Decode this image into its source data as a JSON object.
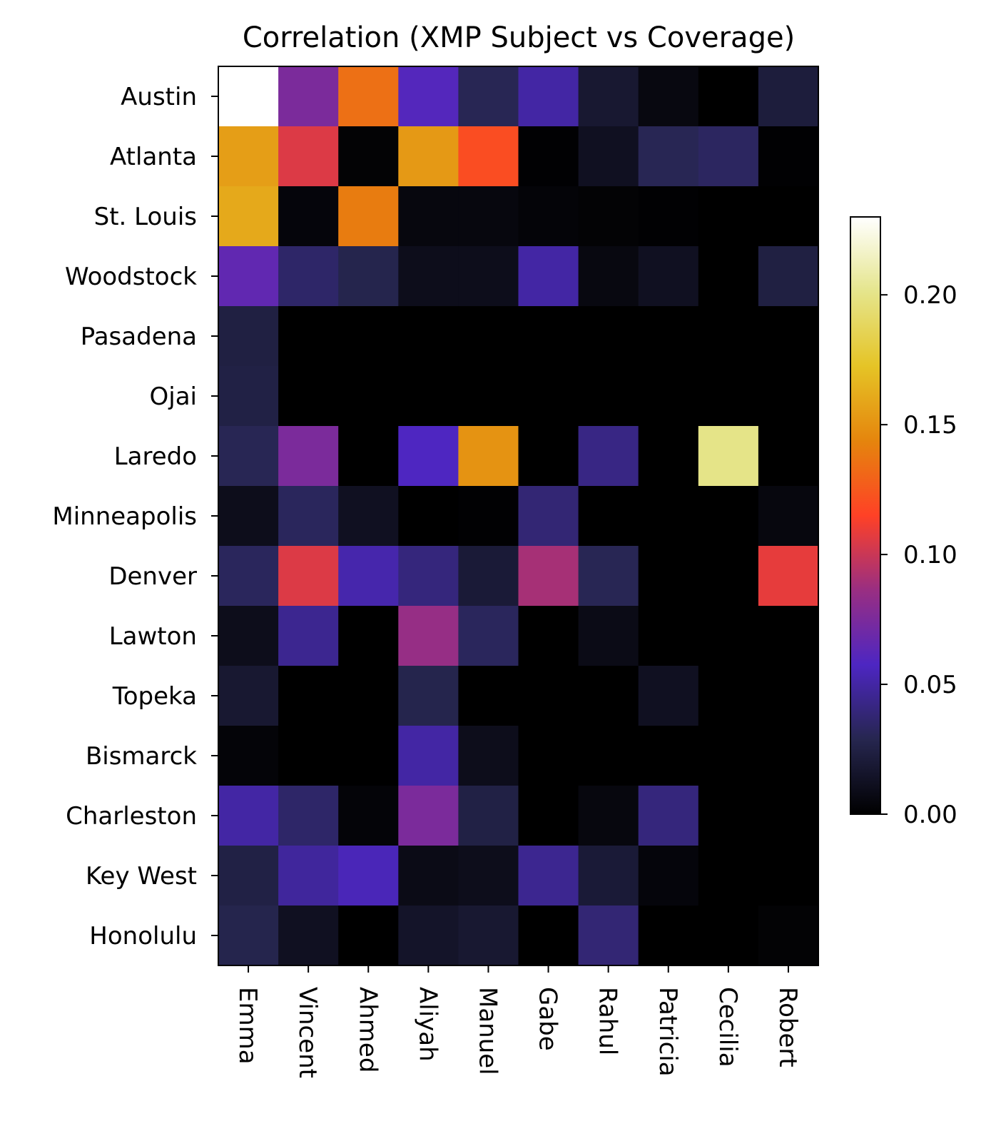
{
  "chart_data": {
    "type": "heatmap",
    "title": "Correlation (XMP Subject vs Coverage)",
    "xlabel": "",
    "ylabel": "",
    "colormap": "CMRmap",
    "rows": [
      "Austin",
      "Atlanta",
      "St. Louis",
      "Woodstock",
      "Pasadena",
      "Ojai",
      "Laredo",
      "Minneapolis",
      "Denver",
      "Lawton",
      "Topeka",
      "Bismarck",
      "Charleston",
      "Key West",
      "Honolulu"
    ],
    "columns": [
      "Emma",
      "Vincent",
      "Ahmed",
      "Aliyah",
      "Manuel",
      "Gabe",
      "Rahul",
      "Patricia",
      "Cecilia",
      "Robert"
    ],
    "values": [
      [
        0.23,
        0.075,
        0.135,
        0.06,
        0.03,
        0.05,
        0.018,
        0.006,
        0.0,
        0.022
      ],
      [
        0.155,
        0.105,
        0.002,
        0.153,
        0.12,
        0.001,
        0.012,
        0.03,
        0.033,
        0.001
      ],
      [
        0.16,
        0.004,
        0.14,
        0.005,
        0.005,
        0.003,
        0.002,
        0.001,
        0.0,
        0.0
      ],
      [
        0.065,
        0.035,
        0.028,
        0.01,
        0.01,
        0.05,
        0.006,
        0.012,
        0.0,
        0.024
      ],
      [
        0.024,
        0.0,
        0.0,
        0.0,
        0.0,
        0.0,
        0.0,
        0.0,
        0.0,
        0.0
      ],
      [
        0.025,
        0.0,
        0.0,
        0.0,
        0.0,
        0.0,
        0.0,
        0.0,
        0.0,
        0.0
      ],
      [
        0.03,
        0.075,
        0.0,
        0.058,
        0.15,
        0.0,
        0.042,
        0.0,
        0.2,
        0.0
      ],
      [
        0.01,
        0.032,
        0.012,
        0.0,
        0.001,
        0.038,
        0.0,
        0.0,
        0.0,
        0.005
      ],
      [
        0.032,
        0.105,
        0.052,
        0.04,
        0.02,
        0.09,
        0.03,
        0.0,
        0.0,
        0.108
      ],
      [
        0.01,
        0.045,
        0.0,
        0.085,
        0.032,
        0.0,
        0.008,
        0.0,
        0.0,
        0.0
      ],
      [
        0.018,
        0.0,
        0.0,
        0.028,
        0.0,
        0.0,
        0.0,
        0.012,
        0.0,
        0.0
      ],
      [
        0.003,
        0.0,
        0.0,
        0.05,
        0.01,
        0.0,
        0.0,
        0.0,
        0.0,
        0.0
      ],
      [
        0.05,
        0.035,
        0.003,
        0.075,
        0.025,
        0.0,
        0.005,
        0.04,
        0.0,
        0.0
      ],
      [
        0.025,
        0.048,
        0.055,
        0.008,
        0.01,
        0.045,
        0.02,
        0.004,
        0.0,
        0.0
      ],
      [
        0.028,
        0.012,
        0.0,
        0.015,
        0.018,
        0.0,
        0.038,
        0.0,
        0.0,
        0.002
      ]
    ],
    "colorbar": {
      "range": [
        0,
        0.23
      ],
      "ticks": [
        0,
        0.05,
        0.1,
        0.15,
        0.2
      ],
      "tick_labels": [
        "0.00",
        "0.05",
        "0.10",
        "0.15",
        "0.20"
      ]
    },
    "grid": false,
    "legend": "colorbar-right"
  }
}
